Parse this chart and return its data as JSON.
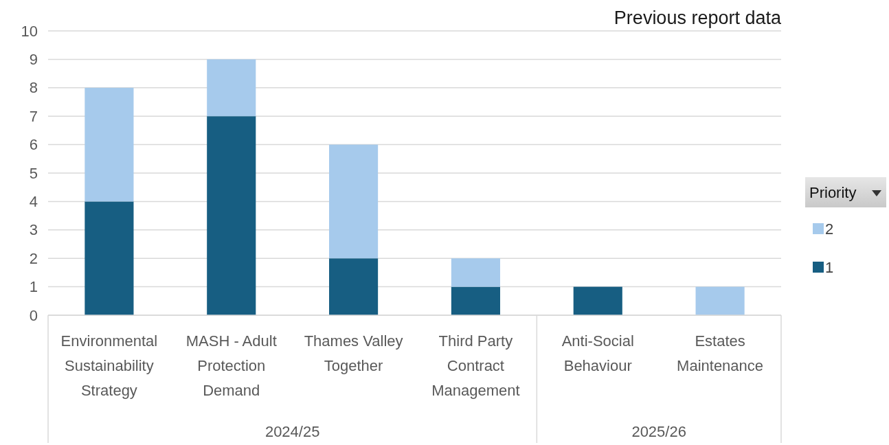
{
  "chart_data": {
    "type": "bar",
    "title": "Previous report data",
    "categories": [
      "Environmental Sustainability Strategy",
      "MASH - Adult Protection Demand",
      "Thames Valley Together",
      "Third Party Contract Management",
      "Anti-Social Behaviour",
      "Estates Maintenance"
    ],
    "series": [
      {
        "name": "1",
        "color": "#175e82",
        "values": [
          4,
          7,
          2,
          1,
          1,
          null
        ]
      },
      {
        "name": "2",
        "color": "#a6caec",
        "values": [
          4,
          2,
          4,
          1,
          null,
          1
        ]
      }
    ],
    "stacked": true,
    "ylim": [
      0,
      10
    ],
    "yticks": [
      0,
      1,
      2,
      3,
      4,
      5,
      6,
      7,
      8,
      9,
      10
    ],
    "grid": "y",
    "legend": "right",
    "legend_title": "Priority",
    "annotations": [
      "2024/25",
      "2025/26"
    ]
  }
}
